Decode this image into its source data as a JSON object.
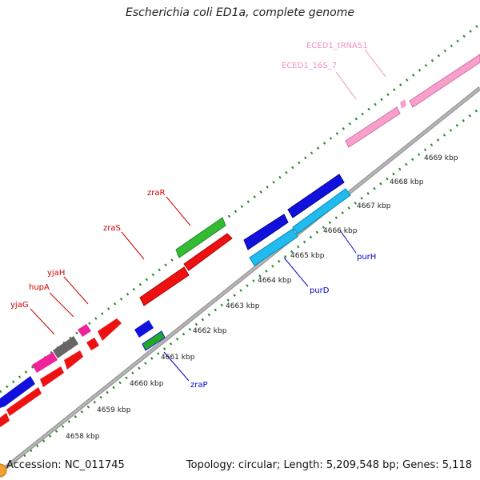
{
  "header": {
    "title": "Escherichia coli ED1a, complete genome"
  },
  "footer": {
    "accession": "Accession: NC_011745",
    "summary": "Topology: circular; Length: 5,209,548 bp; Genes: 5,118"
  },
  "axis_ticks": [
    {
      "label": "4658 kbp"
    },
    {
      "label": "4659 kbp"
    },
    {
      "label": "4660 kbp"
    },
    {
      "label": "4661 kbp"
    },
    {
      "label": "4662 kbp"
    },
    {
      "label": "4663 kbp"
    },
    {
      "label": "4664 kbp"
    },
    {
      "label": "4665 kbp"
    },
    {
      "label": "4666 kbp"
    },
    {
      "label": "4667 kbp"
    },
    {
      "label": "4668 kbp"
    },
    {
      "label": "4669 kbp"
    }
  ],
  "gene_labels": [
    {
      "label": "ECED1_tRNA51",
      "color": "#f48fc0"
    },
    {
      "label": "ECED1_16S_7",
      "color": "#f48fc0"
    },
    {
      "label": "zraR",
      "color": "#cc0000"
    },
    {
      "label": "zraS",
      "color": "#cc0000"
    },
    {
      "label": "yjaH",
      "color": "#cc0000"
    },
    {
      "label": "hupA",
      "color": "#cc0000"
    },
    {
      "label": "yjaG",
      "color": "#cc0000"
    },
    {
      "label": "purH",
      "color": "#0000cc"
    },
    {
      "label": "purD",
      "color": "#0000cc"
    },
    {
      "label": "zraP",
      "color": "#0000cc"
    }
  ],
  "colors": {
    "cds_red": "#ee1111",
    "cds_blue": "#1111dd",
    "cds_cyan": "#22bbee",
    "cds_green": "#33bb33",
    "cds_pink": "#f8a0cc",
    "cds_magenta": "#ee2299",
    "cds_gray": "#666666",
    "backbone": "#888888",
    "gc_dots": "#228822"
  }
}
